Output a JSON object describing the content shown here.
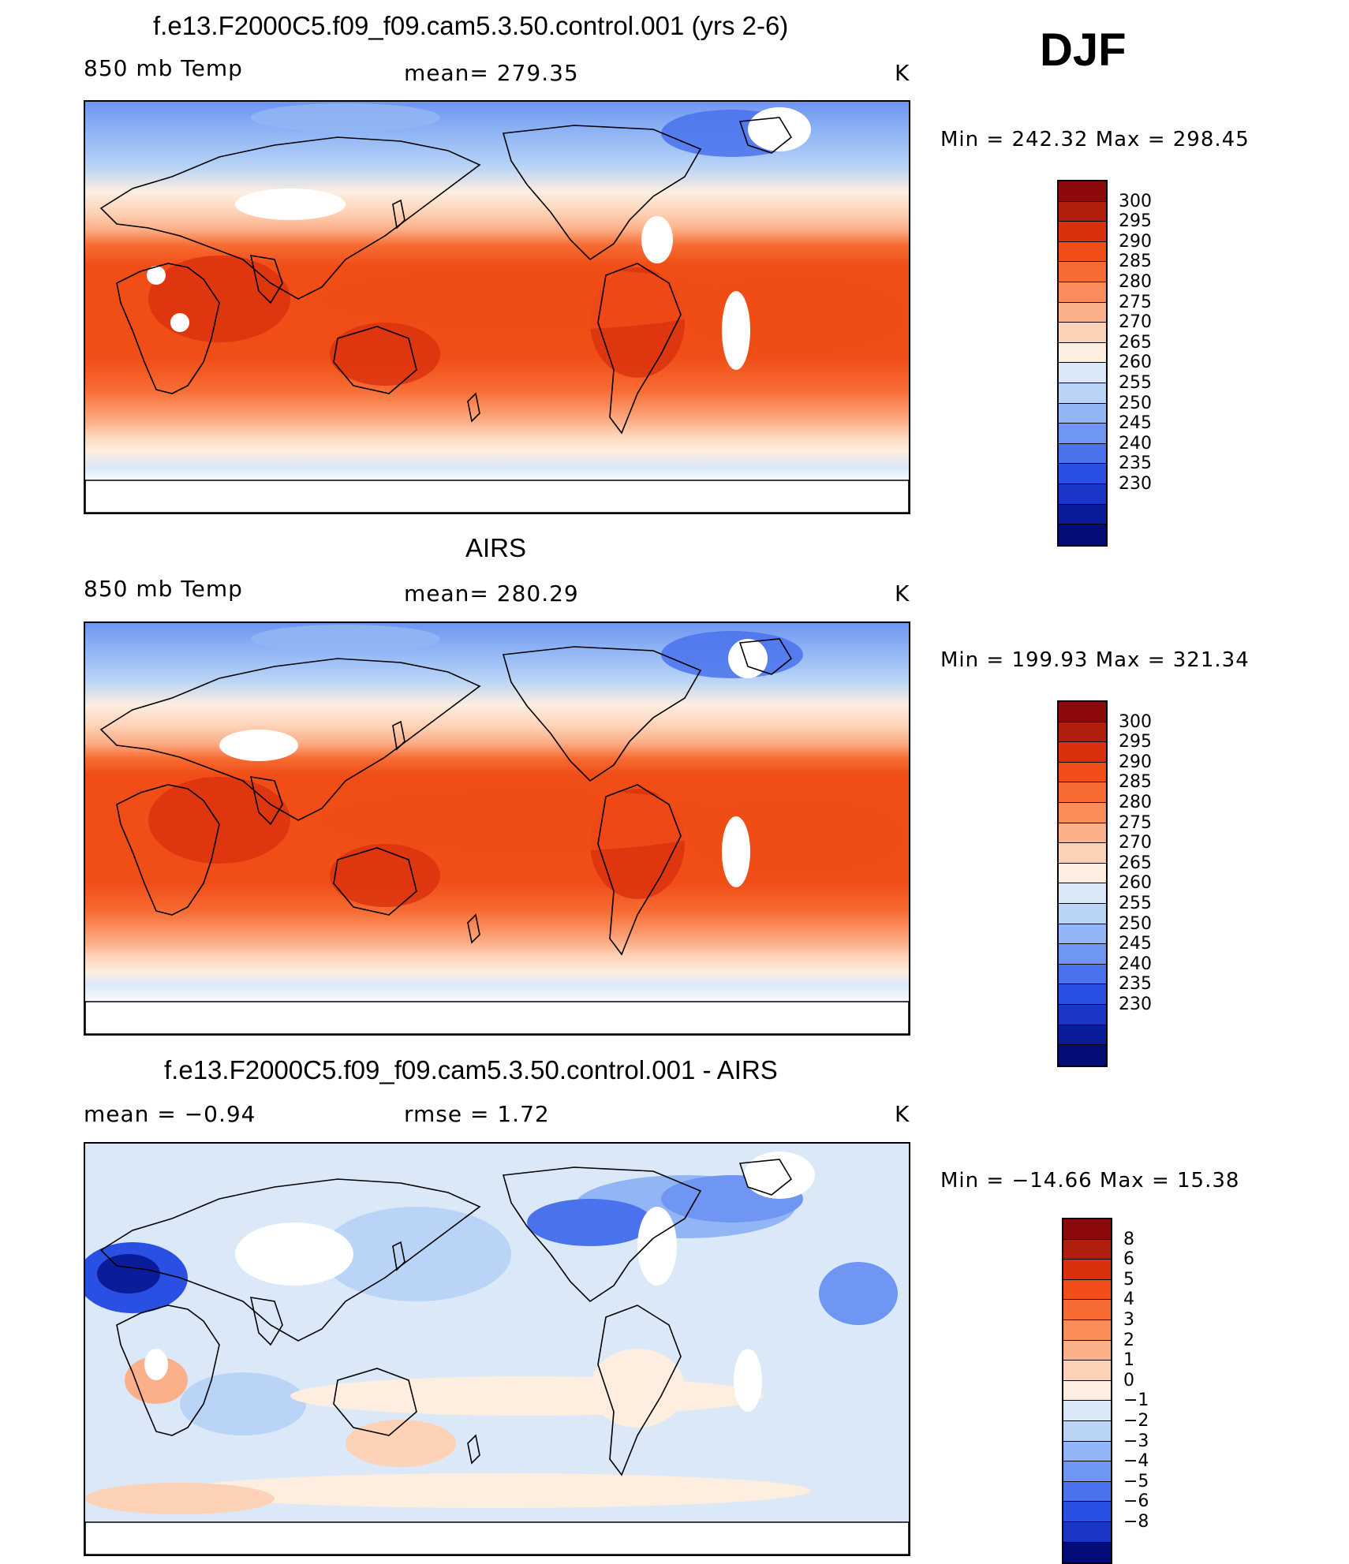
{
  "season": "DJF",
  "panels": [
    {
      "title": "f.e13.F2000C5.f09_f09.cam5.3.50.control.001 (yrs 2-6)",
      "left_label": "850 mb Temp",
      "center_label": "mean=  279.35",
      "units": "K",
      "minmax": "Min  =  242.32  Max  =  298.45",
      "kind": "model"
    },
    {
      "title": "AIRS",
      "left_label": "850 mb Temp",
      "center_label": "mean=  280.29",
      "units": "K",
      "minmax": "Min  =  199.93  Max  =  321.34",
      "kind": "obs"
    },
    {
      "title": "f.e13.F2000C5.f09_f09.cam5.3.50.control.001 - AIRS",
      "left_label": "mean  =     −0.94",
      "center_label": "rmse  =     1.72",
      "units": "K",
      "minmax": "Min  =  −14.66  Max  =    15.38",
      "kind": "diff"
    }
  ],
  "colorbars": {
    "temp": {
      "labels": [
        "300",
        "295",
        "290",
        "285",
        "280",
        "275",
        "270",
        "265",
        "260",
        "255",
        "250",
        "245",
        "240",
        "235",
        "230"
      ],
      "colors": [
        "#8c0a0a",
        "#b01e0c",
        "#d9310e",
        "#f04d17",
        "#f76b32",
        "#fa8c5a",
        "#fcb08a",
        "#fdd2b6",
        "#fdeee0",
        "#dbe8f8",
        "#b9d4f6",
        "#92b6f5",
        "#6e96f2",
        "#4a72ec",
        "#2a4fe3",
        "#1a36c6",
        "#0b1c9a",
        "#040c78"
      ]
    },
    "diff": {
      "labels": [
        "8",
        "6",
        "5",
        "4",
        "3",
        "2",
        "1",
        "0",
        "−1",
        "−2",
        "−3",
        "−4",
        "−5",
        "−6",
        "−8"
      ],
      "colors": [
        "#8c0a0a",
        "#b01e0c",
        "#d9310e",
        "#f04d17",
        "#f76b32",
        "#fa8c5a",
        "#fcb08a",
        "#fdd2b6",
        "#fdeee0",
        "#dbe8f8",
        "#b9d4f6",
        "#92b6f5",
        "#6e96f2",
        "#4a72ec",
        "#2a4fe3",
        "#1a36c6",
        "#040c78"
      ]
    }
  }
}
